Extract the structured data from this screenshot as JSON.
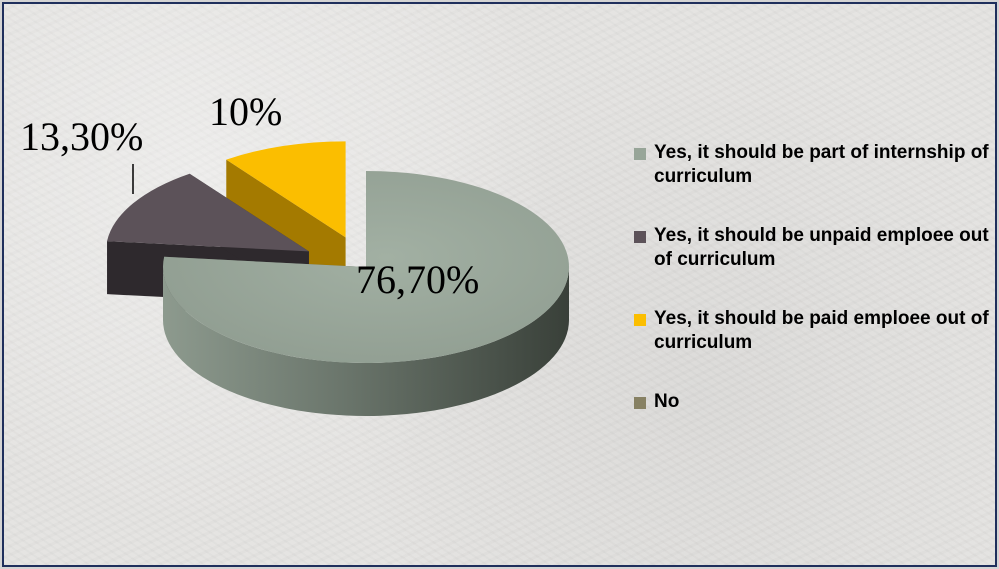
{
  "chart_data": {
    "type": "pie",
    "style": "3d-exploded",
    "slices": [
      {
        "label": "Yes, it should be part of internship of curriculum",
        "value": 76.7,
        "display": "76,70%",
        "color": "#97a598"
      },
      {
        "label": "Yes, it should be unpaid emploee out of curriculum",
        "value": 13.3,
        "display": "13,30%",
        "color": "#5c5259"
      },
      {
        "label": "Yes, it should be paid emploee out of curriculum",
        "value": 10,
        "display": "10%",
        "color": "#fbbe00"
      },
      {
        "label": "No",
        "value": 0,
        "display": "",
        "color": "#878163"
      }
    ],
    "legend_position": "right",
    "title": ""
  }
}
